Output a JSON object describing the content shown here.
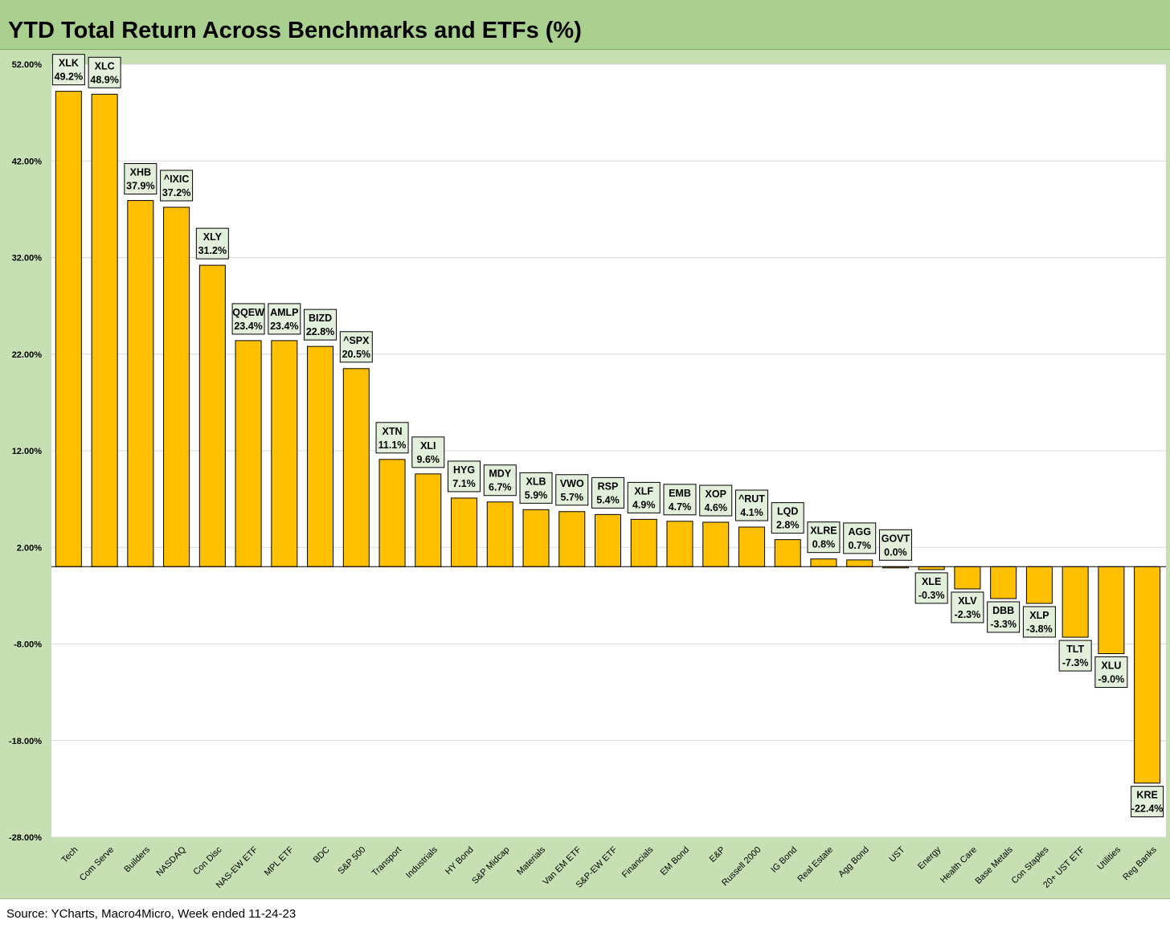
{
  "title": "YTD Total Return Across Benchmarks and ETFs (%)",
  "source": "Source: YCharts, Macro4Micro, Week ended 11-24-23",
  "chart_data": {
    "type": "bar",
    "title": "YTD Total Return Across Benchmarks and ETFs (%)",
    "xlabel": "",
    "ylabel": "",
    "ylim": [
      -28,
      52
    ],
    "yticks": [
      52,
      42,
      32,
      22,
      12,
      2,
      -8,
      -18,
      -28
    ],
    "ytick_labels": [
      "52.00%",
      "42.00%",
      "32.00%",
      "22.00%",
      "12.00%",
      "2.00%",
      "-8.00%",
      "-18.00%",
      "-28.00%"
    ],
    "grid": true,
    "legend": "none",
    "bar_color": "#ffc000",
    "categories": [
      "Tech",
      "Com Serve",
      "Builders",
      "NASDAQ",
      "Con Disc",
      "NAS-EW ETF",
      "MPL ETF",
      "BDC",
      "S&P 500",
      "Transport",
      "Industrials",
      "HY Bond",
      "S&P Midcap",
      "Materials",
      "Van EM ETF",
      "S&P-EW ETF",
      "Financials",
      "EM Bond",
      "E&P",
      "Russell 2000",
      "IG Bond",
      "Real Estate",
      "Agg Bond",
      "UST",
      "Energy",
      "Health Care",
      "Base Metals",
      "Con Staples",
      "20+ UST ETF",
      "Utilities",
      "Reg Banks"
    ],
    "tickers": [
      "XLK",
      "XLC",
      "XHB",
      "^IXIC",
      "XLY",
      "QQEW",
      "AMLP",
      "BIZD",
      "^SPX",
      "XTN",
      "XLI",
      "HYG",
      "MDY",
      "XLB",
      "VWO",
      "RSP",
      "XLF",
      "EMB",
      "XOP",
      "^RUT",
      "LQD",
      "XLRE",
      "AGG",
      "GOVT",
      "XLE",
      "XLV",
      "DBB",
      "XLP",
      "TLT",
      "XLU",
      "KRE"
    ],
    "values": [
      49.2,
      48.9,
      37.9,
      37.2,
      31.2,
      23.4,
      23.4,
      22.8,
      20.5,
      11.1,
      9.6,
      7.1,
      6.7,
      5.9,
      5.7,
      5.4,
      4.9,
      4.7,
      4.6,
      4.1,
      2.8,
      0.8,
      0.7,
      0.0,
      -0.3,
      -2.3,
      -3.3,
      -3.8,
      -7.3,
      -9.0,
      -22.4
    ],
    "value_labels": [
      "49.2%",
      "48.9%",
      "37.9%",
      "37.2%",
      "31.2%",
      "23.4%",
      "23.4%",
      "22.8%",
      "20.5%",
      "11.1%",
      "9.6%",
      "7.1%",
      "6.7%",
      "5.9%",
      "5.7%",
      "5.4%",
      "4.9%",
      "4.7%",
      "4.6%",
      "4.1%",
      "2.8%",
      "0.8%",
      "0.7%",
      "0.0%",
      "-0.3%",
      "-2.3%",
      "-3.3%",
      "-3.8%",
      "-7.3%",
      "-9.0%",
      "-22.4%"
    ]
  }
}
